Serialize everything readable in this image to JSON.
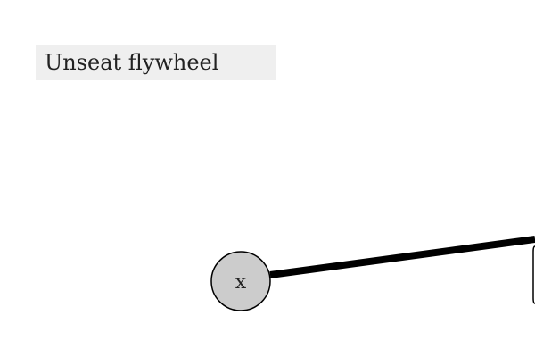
{
  "page": {
    "title": "Unseat flywheel"
  },
  "diagram": {
    "nodes": [
      {
        "id": "x",
        "label": "x",
        "fill": "#cccccc",
        "stroke": "#000000"
      }
    ],
    "edges": [
      {
        "from": "x",
        "to": "offscreen-node",
        "stroke": "#000000"
      }
    ]
  }
}
